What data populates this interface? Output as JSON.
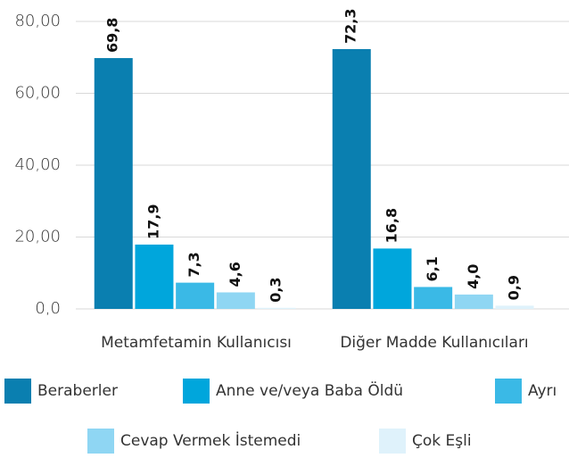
{
  "chart_data": {
    "type": "bar",
    "categories": [
      "Metamfetamin Kullanıcısı",
      "Diğer Madde Kullanıcıları"
    ],
    "series": [
      {
        "name": "Beraberler",
        "color": "#0a7fb0",
        "values": [
          69.8,
          72.3
        ],
        "value_labels": [
          "69,8",
          "72,3"
        ]
      },
      {
        "name": "Anne ve/veya Baba Öldü",
        "color": "#00a6dc",
        "values": [
          17.9,
          16.8
        ],
        "value_labels": [
          "17,9",
          "16,8"
        ]
      },
      {
        "name": "Ayrı",
        "color": "#3ab9e6",
        "values": [
          7.3,
          6.1
        ],
        "value_labels": [
          "7,3",
          "6,1"
        ]
      },
      {
        "name": "Cevap Vermek İstemedi",
        "color": "#8fd6f3",
        "values": [
          4.6,
          4.0
        ],
        "value_labels": [
          "4,6",
          "4,0"
        ]
      },
      {
        "name": "Çok Eşli",
        "color": "#dff2fb",
        "values": [
          0.3,
          0.9
        ],
        "value_labels": [
          "0,3",
          "0,9"
        ]
      }
    ],
    "ylim": [
      0,
      80
    ],
    "yticks": [
      {
        "value": 0,
        "label": "0,0"
      },
      {
        "value": 20,
        "label": "20,00"
      },
      {
        "value": 40,
        "label": "40,00"
      },
      {
        "value": 60,
        "label": "60,00"
      },
      {
        "value": 80,
        "label": "80,00"
      }
    ],
    "grid": true
  }
}
